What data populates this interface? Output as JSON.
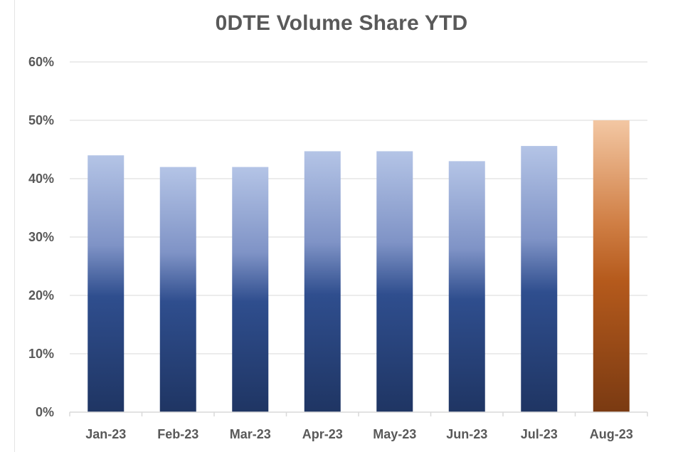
{
  "chart_data": {
    "type": "bar",
    "title": "0DTE Volume Share YTD",
    "xlabel": "",
    "ylabel": "",
    "categories": [
      "Jan-23",
      "Feb-23",
      "Mar-23",
      "Apr-23",
      "May-23",
      "Jun-23",
      "Jul-23",
      "Aug-23"
    ],
    "values": [
      0.44,
      0.42,
      0.42,
      0.447,
      0.447,
      0.43,
      0.456,
      0.5
    ],
    "ylim": [
      0,
      0.6
    ],
    "yticks": [
      0,
      0.1,
      0.2,
      0.3,
      0.4,
      0.5,
      0.6
    ],
    "ytick_labels": [
      "0%",
      "10%",
      "20%",
      "30%",
      "40%",
      "50%",
      "60%"
    ],
    "grid": true,
    "legend": "none",
    "colors": {
      "default_top": "#b4c4e6",
      "default_mid": "#2f4e8e",
      "default_bottom": "#1f3563",
      "highlight_top": "#f3c7a3",
      "highlight_mid": "#b55a1c",
      "highlight_bottom": "#7a3a12",
      "gridline": "#d9d9d9",
      "text": "#595959"
    },
    "highlight_category": "Aug-23"
  }
}
